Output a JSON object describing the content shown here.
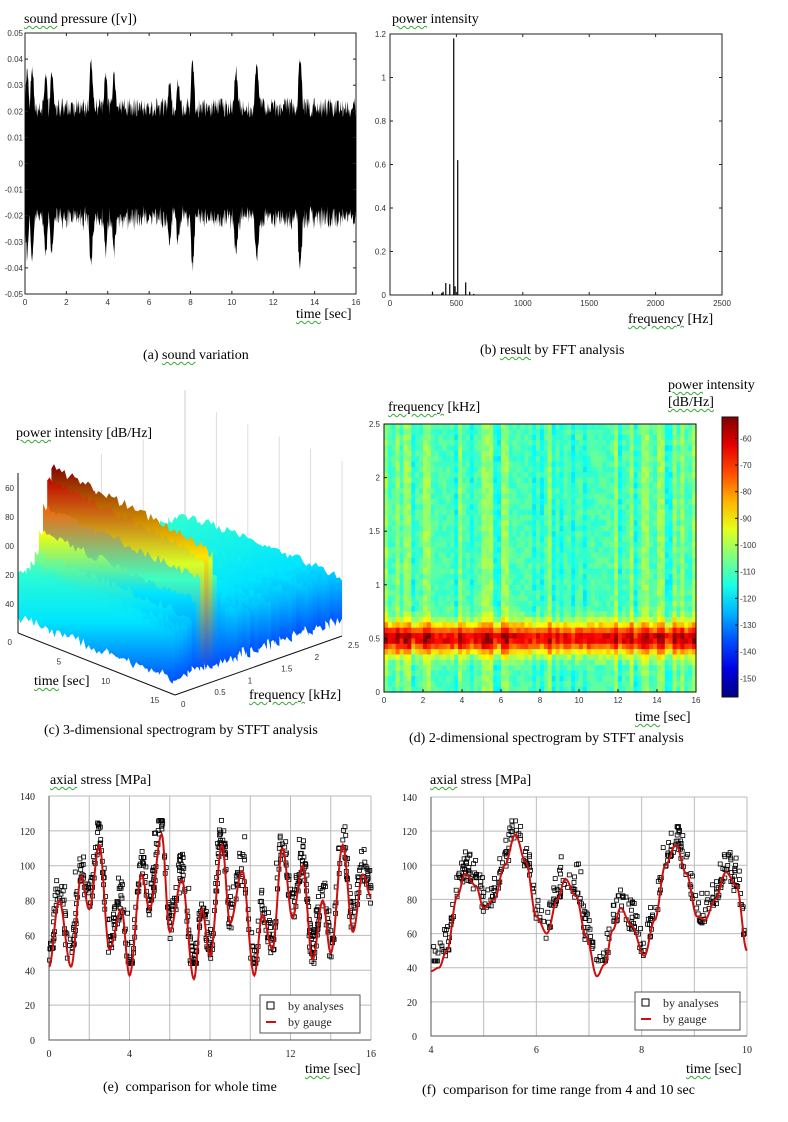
{
  "colors": {
    "waveform": "#000000",
    "gauge_line": "#cc1010",
    "marker": "#000000",
    "grid": "#bbbbbb"
  },
  "chart_data": [
    {
      "id": "a",
      "type": "area",
      "caption_prefix": "(a)",
      "caption_underlined": "sound",
      "caption_rest": "variation",
      "ylabel_underlined": "sound",
      "ylabel_rest": "pressure ([v])",
      "xlabel_underlined": "time",
      "xlabel_rest": "[sec]",
      "xlim": [
        0,
        16
      ],
      "ylim": [
        -0.05,
        0.05
      ],
      "xticks": [
        "0",
        "2",
        "4",
        "6",
        "8",
        "10",
        "12",
        "14",
        "16"
      ],
      "yticks": [
        "0.05",
        "0.04",
        "0.03",
        "0.02",
        "0.01",
        "0",
        "-0.01",
        "-0.02",
        "-0.03",
        "-0.04",
        "-0.05"
      ],
      "envelope_peaks": [
        {
          "t": 0.1,
          "amp": 0.037
        },
        {
          "t": 0.35,
          "amp": 0.039
        },
        {
          "t": 1.0,
          "amp": 0.037
        },
        {
          "t": 1.3,
          "amp": 0.039
        },
        {
          "t": 3.2,
          "amp": 0.042
        },
        {
          "t": 3.9,
          "amp": 0.036
        },
        {
          "t": 4.3,
          "amp": 0.037
        },
        {
          "t": 7.0,
          "amp": 0.035
        },
        {
          "t": 7.4,
          "amp": 0.034
        },
        {
          "t": 8.1,
          "amp": 0.042
        },
        {
          "t": 10.2,
          "amp": 0.039
        },
        {
          "t": 11.2,
          "amp": 0.043
        },
        {
          "t": 13.3,
          "amp": 0.043
        }
      ],
      "baseline_amp": 0.022
    },
    {
      "id": "b",
      "type": "bar",
      "caption_prefix": "(b)",
      "caption_underlined": "result",
      "caption_rest": "by FFT  analysis",
      "ylabel_underlined": "power",
      "ylabel_rest": "intensity",
      "xlabel_underlined": "frequency",
      "xlabel_rest": "[Hz]",
      "xlim": [
        0,
        2500
      ],
      "ylim": [
        0,
        1.2
      ],
      "xticks": [
        "0",
        "500",
        "1000",
        "1500",
        "2000",
        "2500"
      ],
      "yticks": [
        "1.2",
        "1",
        "0.8",
        "0.6",
        "0.4",
        "0.2",
        "0"
      ],
      "x": [
        320,
        390,
        400,
        420,
        450,
        480,
        490,
        510,
        570,
        600,
        630
      ],
      "values": [
        0.015,
        0.01,
        0.015,
        0.055,
        0.05,
        1.18,
        0.04,
        0.62,
        0.058,
        0.015,
        0.005
      ]
    },
    {
      "id": "c",
      "type": "surface3d",
      "caption_prefix": "(c)",
      "caption_text": "3-dimensional spectrogram  by STFT  analysis",
      "zlabel_underlined": "power",
      "zlabel_rest": "intensity [dB/Hz]",
      "xlabel_underlined": "time",
      "xlabel_rest": "[sec]",
      "ylabel_underlined": "frequency",
      "ylabel_rest": "[kHz]",
      "zticks": [
        "60",
        "80",
        "00",
        "20",
        "40"
      ],
      "time_ticks": [
        "0",
        "5",
        "10",
        "15"
      ],
      "freq_ticks": [
        "0",
        "0.5",
        "1",
        "1.5",
        "2",
        "2.5"
      ],
      "peak_band_khz": 0.5
    },
    {
      "id": "d",
      "type": "heatmap",
      "caption_prefix": "(d)",
      "caption_text": "2-dimensional spectrogram  by STFT  analysis",
      "ylabel_underlined": "frequency",
      "ylabel_rest": "[kHz]",
      "xlabel_underlined": "time",
      "xlabel_rest": "[sec]",
      "colorbar_label_underlined": "power",
      "colorbar_label_rest": "intensity",
      "colorbar_unit": "[dB/Hz]",
      "xlim": [
        0,
        16
      ],
      "ylim": [
        0,
        2.5
      ],
      "clim": [
        -157,
        -52
      ],
      "xticks": [
        "0",
        "2",
        "4",
        "6",
        "8",
        "10",
        "12",
        "14",
        "16"
      ],
      "yticks": [
        "2.5",
        "2",
        "1.5",
        "1",
        "0.5",
        "0"
      ],
      "colorbar_ticks": [
        "-60",
        "-70",
        "-80",
        "-90",
        "-100",
        "-110",
        "-120",
        "-130",
        "-140",
        "-150"
      ],
      "band_center_khz": 0.5,
      "band_level_db": -62,
      "background_level_db": -110
    },
    {
      "id": "e",
      "type": "scatter",
      "caption_prefix": "(e)",
      "caption_text": "comparison for whole time",
      "ylabel_underlined": "axial",
      "ylabel_rest": "stress [MPa]",
      "xlabel_underlined": "time",
      "xlabel_rest": "[sec]",
      "xlim": [
        0,
        16
      ],
      "ylim": [
        0,
        140
      ],
      "xticks": [
        "0",
        "4",
        "8",
        "12",
        "16"
      ],
      "yticks": [
        "140",
        "120",
        "100",
        "80",
        "60",
        "40",
        "20",
        "0"
      ],
      "legend": [
        "by analyses",
        "by gauge"
      ],
      "legend_position": "bottom-right",
      "series": [
        {
          "name": "by gauge",
          "kind": "line",
          "x": [
            0,
            0.5,
            1.1,
            1.6,
            2.0,
            2.5,
            3.0,
            3.6,
            4.0,
            4.6,
            5.0,
            5.6,
            6.0,
            6.6,
            7.2,
            7.6,
            8.0,
            8.6,
            9.0,
            9.6,
            10.2,
            10.6,
            11.1,
            11.6,
            12.1,
            12.6,
            13.1,
            13.6,
            14.0,
            14.6,
            15.1,
            15.6,
            16.0
          ],
          "y": [
            42,
            80,
            42,
            94,
            75,
            112,
            52,
            75,
            37,
            95,
            75,
            118,
            62,
            92,
            35,
            75,
            48,
            112,
            67,
            97,
            37,
            72,
            52,
            110,
            70,
            100,
            46,
            80,
            50,
            112,
            62,
            95,
            82
          ]
        },
        {
          "name": "by analyses",
          "kind": "markers",
          "generated_around_line": true,
          "noise_mpa": 10
        }
      ]
    },
    {
      "id": "f",
      "type": "scatter",
      "caption_prefix": "(f)",
      "caption_text": "comparison for time range from 4 and 10 sec",
      "ylabel_underlined": "axial",
      "ylabel_rest": "stress [MPa]",
      "xlabel_underlined": "time",
      "xlabel_rest": "[sec]",
      "xlim": [
        4,
        10
      ],
      "ylim": [
        0,
        140
      ],
      "xticks": [
        "4",
        "6",
        "8",
        "10"
      ],
      "yticks": [
        "140",
        "120",
        "100",
        "80",
        "60",
        "40",
        "20",
        "0"
      ],
      "legend": [
        "by analyses",
        "by gauge"
      ],
      "legend_position": "bottom-right",
      "series": [
        {
          "name": "by gauge",
          "kind": "line",
          "x": [
            4.0,
            4.15,
            4.3,
            4.5,
            4.65,
            4.85,
            5.0,
            5.2,
            5.4,
            5.6,
            5.8,
            6.0,
            6.2,
            6.4,
            6.55,
            6.75,
            6.95,
            7.15,
            7.3,
            7.45,
            7.6,
            7.8,
            8.05,
            8.25,
            8.45,
            8.65,
            8.85,
            9.05,
            9.2,
            9.4,
            9.6,
            9.8,
            10.0
          ],
          "y": [
            38,
            40,
            50,
            82,
            95,
            88,
            75,
            80,
            100,
            118,
            102,
            70,
            60,
            80,
            92,
            82,
            58,
            35,
            42,
            62,
            75,
            65,
            47,
            68,
            100,
            112,
            95,
            70,
            68,
            80,
            96,
            88,
            50
          ]
        },
        {
          "name": "by analyses",
          "kind": "markers",
          "generated_around_line": true,
          "noise_mpa": 9
        }
      ]
    }
  ]
}
